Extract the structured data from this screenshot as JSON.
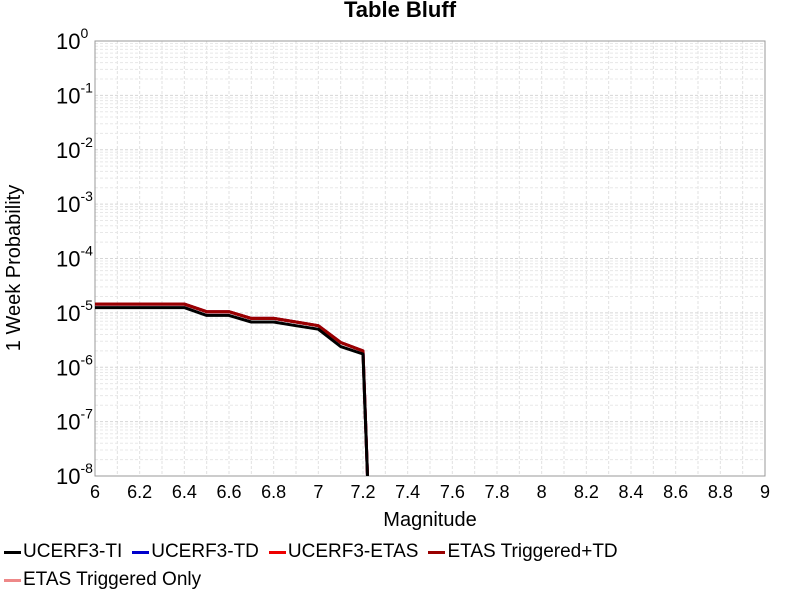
{
  "chart_data": {
    "type": "line",
    "title": "Table Bluff",
    "xlabel": "Magnitude",
    "ylabel": "1 Week Probability",
    "xlim": [
      6,
      9
    ],
    "ylim": [
      1e-08,
      1
    ],
    "yscale": "log",
    "grid": true,
    "legend_position": "bottom",
    "x_ticks": [
      "6",
      "6.2",
      "6.4",
      "6.6",
      "6.8",
      "7",
      "7.2",
      "7.4",
      "7.6",
      "7.8",
      "8",
      "8.2",
      "8.4",
      "8.6",
      "8.8",
      "9"
    ],
    "y_ticks": [
      {
        "base": "10",
        "exp": "0"
      },
      {
        "base": "10",
        "exp": "-1"
      },
      {
        "base": "10",
        "exp": "-2"
      },
      {
        "base": "10",
        "exp": "-3"
      },
      {
        "base": "10",
        "exp": "-4"
      },
      {
        "base": "10",
        "exp": "-5"
      },
      {
        "base": "10",
        "exp": "-6"
      },
      {
        "base": "10",
        "exp": "-7"
      },
      {
        "base": "10",
        "exp": "-8"
      }
    ],
    "series": [
      {
        "name": "UCERF3-TI",
        "color": "#000000",
        "x": [
          6.0,
          6.1,
          6.2,
          6.3,
          6.4,
          6.5,
          6.6,
          6.7,
          6.8,
          6.9,
          7.0,
          7.1,
          7.2,
          7.22
        ],
        "y": [
          1.25e-05,
          1.25e-05,
          1.25e-05,
          1.25e-05,
          1.25e-05,
          9e-06,
          9e-06,
          6.8e-06,
          6.8e-06,
          5.8e-06,
          5e-06,
          2.4e-06,
          1.75e-06,
          1e-08
        ]
      },
      {
        "name": "UCERF3-TD",
        "color": "#0000cc",
        "x": [
          6.0,
          6.1,
          6.2,
          6.3,
          6.4,
          6.5,
          6.6,
          6.7,
          6.8,
          6.9,
          7.0,
          7.1,
          7.2,
          7.22
        ],
        "y": [
          1.45e-05,
          1.45e-05,
          1.45e-05,
          1.45e-05,
          1.45e-05,
          1.05e-05,
          1.05e-05,
          7.9e-06,
          7.9e-06,
          6.8e-06,
          5.8e-06,
          2.85e-06,
          2e-06,
          1e-08
        ]
      },
      {
        "name": "UCERF3-ETAS",
        "color": "#ee0000",
        "x": [
          6.0,
          6.1,
          6.2,
          6.3,
          6.4,
          6.5,
          6.6,
          6.7,
          6.8,
          6.9,
          7.0,
          7.1,
          7.2,
          7.22
        ],
        "y": [
          1.45e-05,
          1.45e-05,
          1.45e-05,
          1.45e-05,
          1.45e-05,
          1.05e-05,
          1.05e-05,
          7.9e-06,
          7.9e-06,
          6.8e-06,
          5.8e-06,
          2.85e-06,
          2e-06,
          1e-08
        ]
      },
      {
        "name": "ETAS Triggered+TD",
        "color": "#990000",
        "x": [
          6.0,
          6.1,
          6.2,
          6.3,
          6.4,
          6.5,
          6.6,
          6.7,
          6.8,
          6.9,
          7.0,
          7.1,
          7.2,
          7.22
        ],
        "y": [
          1.45e-05,
          1.45e-05,
          1.45e-05,
          1.45e-05,
          1.45e-05,
          1.05e-05,
          1.05e-05,
          7.9e-06,
          7.9e-06,
          6.8e-06,
          5.8e-06,
          2.85e-06,
          2e-06,
          1e-08
        ]
      },
      {
        "name": "ETAS Triggered Only",
        "color": "#ee8888",
        "x": [],
        "y": []
      }
    ]
  }
}
